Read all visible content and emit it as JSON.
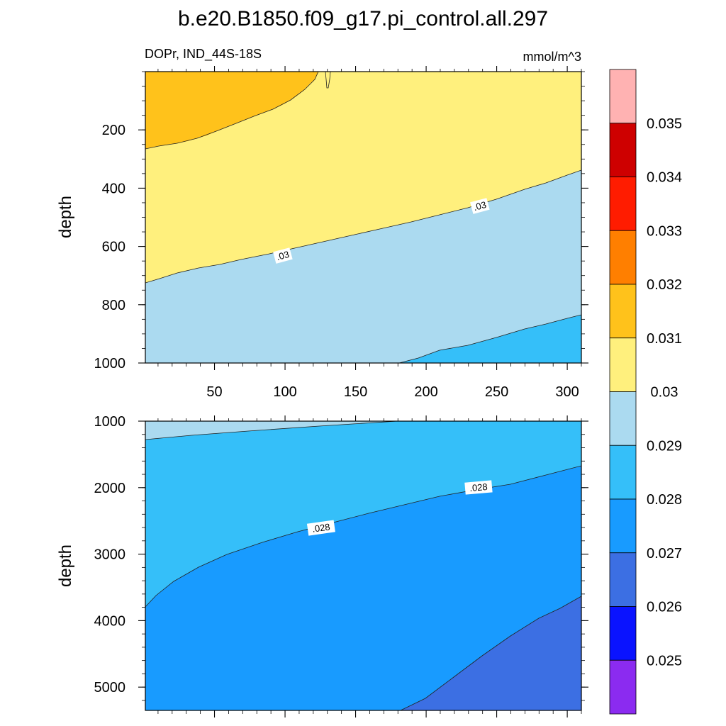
{
  "chart_data": {
    "type": "contour",
    "title": "b.e20.B1850.f09_g17.pi_control.all.297",
    "variable_label": "DOPr, IND_44S-18S",
    "units": "mmol/m^3",
    "xlabel": "",
    "ylabel": "depth",
    "xlim": [
      1,
      310
    ],
    "x_ticks": [
      "50",
      "100",
      "150",
      "200",
      "250",
      "300"
    ],
    "colorbar": {
      "colors": [
        "#8B2BF0",
        "#0A13FF",
        "#3C6FE3",
        "#189BFF",
        "#35BFF9",
        "#ABDAF0",
        "#FFF07D",
        "#FFC21B",
        "#FF7F00",
        "#FF1C00",
        "#CE0000",
        "#FFB2B2"
      ],
      "labels": [
        "0.025",
        "0.026",
        "0.027",
        "0.028",
        "0.029",
        "0.03",
        "0.031",
        "0.032",
        "0.033",
        "0.034",
        "0.035"
      ]
    },
    "panels": [
      {
        "name": "upper",
        "ylim": [
          1000,
          0
        ],
        "y_ticks": [
          "200",
          "400",
          "600",
          "800",
          "1000"
        ],
        "regions": [
          {
            "level": "0.030-0.031",
            "color": "#FFF07D"
          },
          {
            "level": "0.031-0.032",
            "color": "#FFC21B"
          },
          {
            "level": "0.029-0.030",
            "color": "#ABDAF0"
          },
          {
            "level": "0.028-0.029",
            "color": "#35BFF9"
          }
        ],
        "contour_labels": [
          ".03",
          ".03"
        ]
      },
      {
        "name": "lower",
        "ylim": [
          5350,
          1000
        ],
        "y_ticks": [
          "1000",
          "2000",
          "3000",
          "4000",
          "5000"
        ],
        "regions": [
          {
            "level": "0.028-0.029",
            "color": "#35BFF9"
          },
          {
            "level": "0.029-0.030",
            "color": "#ABDAF0"
          },
          {
            "level": "0.027-0.028",
            "color": "#189BFF"
          },
          {
            "level": "0.026-0.027",
            "color": "#3C6FE3"
          }
        ],
        "contour_labels": [
          ".028",
          ".028"
        ]
      }
    ]
  }
}
